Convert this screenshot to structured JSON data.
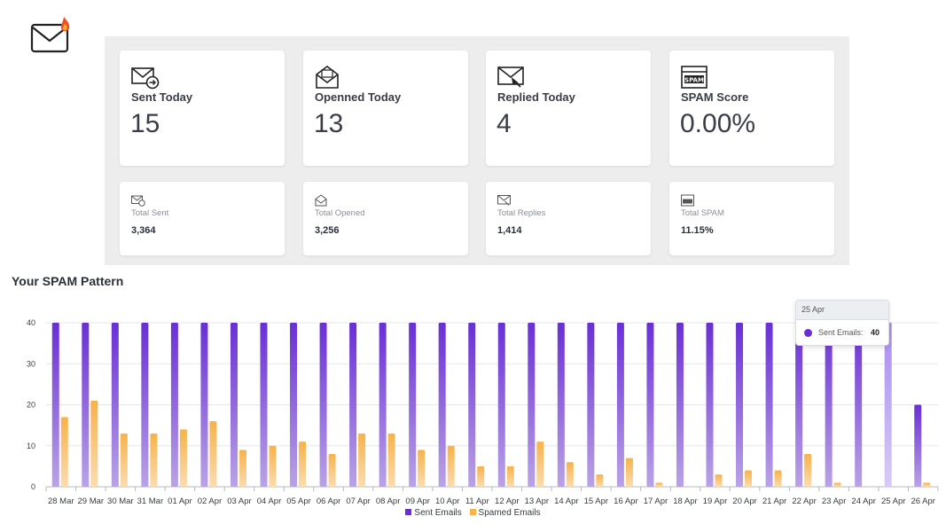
{
  "logo": {
    "icon": "mail-fire-icon"
  },
  "stats": {
    "today": [
      {
        "icon": "mail-sent-icon",
        "title": "Sent Today",
        "value": "15"
      },
      {
        "icon": "mail-open-icon",
        "title": "Openned Today",
        "value": "13"
      },
      {
        "icon": "mail-reply-icon",
        "title": "Replied Today",
        "value": "4"
      },
      {
        "icon": "spam-icon",
        "title": "SPAM Score",
        "value": "0.00%"
      }
    ],
    "totals": [
      {
        "icon": "mail-sent-icon",
        "title": "Total Sent",
        "value": "3,364"
      },
      {
        "icon": "mail-open-icon",
        "title": "Total Opened",
        "value": "3,256"
      },
      {
        "icon": "mail-reply-icon",
        "title": "Total Replies",
        "value": "1,414"
      },
      {
        "icon": "spam-icon",
        "title": "Total SPAM",
        "value": "11.15%"
      }
    ]
  },
  "chart_title": "Your SPAM Pattern",
  "tooltip": {
    "date": "25 Apr",
    "series": "Sent Emails:",
    "value": "40"
  },
  "chart_data": {
    "type": "bar",
    "title": "Your SPAM Pattern",
    "xlabel": "",
    "ylabel": "",
    "ylim": [
      0,
      40
    ],
    "yticks": [
      0,
      10,
      20,
      30,
      40
    ],
    "grid": true,
    "legend": "bottom",
    "highlighted_category": "25 Apr",
    "categories": [
      "28 Mar",
      "29 Mar",
      "30 Mar",
      "31 Mar",
      "01 Apr",
      "02 Apr",
      "03 Apr",
      "04 Apr",
      "05 Apr",
      "06 Apr",
      "07 Apr",
      "08 Apr",
      "09 Apr",
      "10 Apr",
      "11 Apr",
      "12 Apr",
      "13 Apr",
      "14 Apr",
      "15 Apr",
      "16 Apr",
      "17 Apr",
      "18 Apr",
      "19 Apr",
      "20 Apr",
      "21 Apr",
      "22 Apr",
      "23 Apr",
      "24 Apr",
      "25 Apr",
      "26 Apr"
    ],
    "series": [
      {
        "name": "Sent Emails",
        "color": "#6a2ed6",
        "values": [
          40,
          40,
          40,
          40,
          40,
          40,
          40,
          40,
          40,
          40,
          40,
          40,
          40,
          40,
          40,
          40,
          40,
          40,
          40,
          40,
          40,
          40,
          40,
          40,
          40,
          40,
          40,
          40,
          40,
          20
        ]
      },
      {
        "name": "Spamed Emails",
        "color": "#f7b24a",
        "values": [
          17,
          21,
          13,
          13,
          14,
          16,
          9,
          10,
          11,
          8,
          13,
          13,
          9,
          10,
          5,
          5,
          11,
          6,
          3,
          7,
          1,
          0,
          3,
          4,
          4,
          8,
          1,
          0,
          0,
          1
        ]
      }
    ]
  }
}
